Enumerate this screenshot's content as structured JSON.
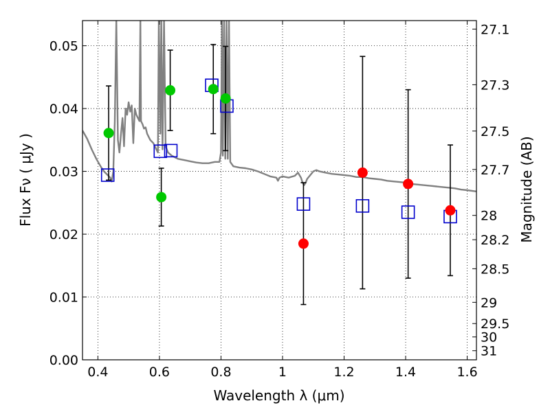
{
  "chart_data": {
    "type": "scatter",
    "xlabel": "Wavelength  λ (μm)",
    "ylabel": "Flux  Fν  ( μJy )",
    "y2label": "Magnitude (AB)",
    "xlim": [
      0.35,
      1.63
    ],
    "ylim": [
      0.0,
      0.054
    ],
    "grid": true,
    "x_ticks": [
      0.4,
      0.6,
      0.8,
      1.0,
      1.2,
      1.4,
      1.6
    ],
    "x_tick_labels": [
      "0.4",
      "0.6",
      "0.8",
      "1",
      "1.2",
      "1.4",
      "1.6"
    ],
    "y_ticks": [
      0.0,
      0.01,
      0.02,
      0.03,
      0.04,
      0.05
    ],
    "y_tick_labels": [
      "0.00",
      "0.01",
      "0.02",
      "0.03",
      "0.04",
      "0.05"
    ],
    "y2_ticks": [
      {
        "label": "27.1",
        "flux": 0.05265
      },
      {
        "label": "27.3",
        "flux": 0.04379
      },
      {
        "label": "27.5",
        "flux": 0.03642
      },
      {
        "label": "27.7",
        "flux": 0.0303
      },
      {
        "label": "28",
        "flux": 0.02299
      },
      {
        "label": "28.2",
        "flux": 0.01912
      },
      {
        "label": "28.5",
        "flux": 0.0145
      },
      {
        "label": "29",
        "flux": 0.00915
      },
      {
        "label": "29.5",
        "flux": 0.00577
      },
      {
        "label": "30",
        "flux": 0.00364
      },
      {
        "label": "31",
        "flux": 0.00145
      }
    ],
    "series": [
      {
        "marker": "circle",
        "color": "#00c800",
        "points": [
          {
            "x": 0.435,
            "y": 0.0361,
            "yerr": 0.0075
          },
          {
            "x": 0.606,
            "y": 0.0259,
            "yerr": 0.0046
          },
          {
            "x": 0.635,
            "y": 0.0429,
            "yerr": 0.0064
          },
          {
            "x": 0.775,
            "y": 0.0431,
            "yerr": 0.0071
          },
          {
            "x": 0.815,
            "y": 0.0416,
            "yerr": 0.0083
          }
        ]
      },
      {
        "marker": "circle",
        "color": "#ff0000",
        "points": [
          {
            "x": 1.068,
            "y": 0.0185,
            "yerr": 0.0097
          },
          {
            "x": 1.26,
            "y": 0.0298,
            "yerr": 0.0185
          },
          {
            "x": 1.408,
            "y": 0.028,
            "yerr": 0.015
          },
          {
            "x": 1.545,
            "y": 0.0238,
            "yerr": 0.0104
          }
        ]
      },
      {
        "marker": "open-square",
        "color": "#0000cc",
        "points": [
          {
            "x": 0.432,
            "y": 0.0294
          },
          {
            "x": 0.603,
            "y": 0.0332
          },
          {
            "x": 0.637,
            "y": 0.0333
          },
          {
            "x": 0.77,
            "y": 0.0437
          },
          {
            "x": 0.819,
            "y": 0.0404
          },
          {
            "x": 1.068,
            "y": 0.0248
          },
          {
            "x": 1.26,
            "y": 0.0245
          },
          {
            "x": 1.408,
            "y": 0.0235
          },
          {
            "x": 1.545,
            "y": 0.0228
          }
        ]
      },
      {
        "marker": "line",
        "color": "#808080",
        "points": [
          [
            0.35,
            0.0365
          ],
          [
            0.365,
            0.0352
          ],
          [
            0.38,
            0.0335
          ],
          [
            0.395,
            0.032
          ],
          [
            0.41,
            0.0307
          ],
          [
            0.42,
            0.03
          ],
          [
            0.43,
            0.0295
          ],
          [
            0.44,
            0.029
          ],
          [
            0.445,
            0.0284
          ],
          [
            0.45,
            0.03
          ],
          [
            0.455,
            0.038
          ],
          [
            0.46,
            0.054
          ],
          [
            0.465,
            0.035
          ],
          [
            0.47,
            0.033
          ],
          [
            0.475,
            0.036
          ],
          [
            0.48,
            0.0385
          ],
          [
            0.485,
            0.034
          ],
          [
            0.49,
            0.04
          ],
          [
            0.495,
            0.039
          ],
          [
            0.5,
            0.041
          ],
          [
            0.505,
            0.0395
          ],
          [
            0.51,
            0.0405
          ],
          [
            0.515,
            0.0345
          ],
          [
            0.52,
            0.04
          ],
          [
            0.525,
            0.039
          ],
          [
            0.53,
            0.0385
          ],
          [
            0.535,
            0.038
          ],
          [
            0.538,
            0.054
          ],
          [
            0.54,
            0.038
          ],
          [
            0.545,
            0.0375
          ],
          [
            0.55,
            0.0368
          ],
          [
            0.555,
            0.037
          ],
          [
            0.56,
            0.036
          ],
          [
            0.57,
            0.035
          ],
          [
            0.58,
            0.0345
          ],
          [
            0.59,
            0.0335
          ],
          [
            0.595,
            0.033
          ],
          [
            0.598,
            0.054
          ],
          [
            0.603,
            0.036
          ],
          [
            0.606,
            0.054
          ],
          [
            0.61,
            0.0335
          ],
          [
            0.615,
            0.054
          ],
          [
            0.62,
            0.034
          ],
          [
            0.628,
            0.033
          ],
          [
            0.64,
            0.0325
          ],
          [
            0.66,
            0.032
          ],
          [
            0.68,
            0.0318
          ],
          [
            0.7,
            0.0316
          ],
          [
            0.72,
            0.0314
          ],
          [
            0.74,
            0.0313
          ],
          [
            0.76,
            0.0313
          ],
          [
            0.78,
            0.0315
          ],
          [
            0.795,
            0.0315
          ],
          [
            0.8,
            0.033
          ],
          [
            0.803,
            0.054
          ],
          [
            0.806,
            0.0325
          ],
          [
            0.81,
            0.054
          ],
          [
            0.814,
            0.032
          ],
          [
            0.818,
            0.054
          ],
          [
            0.822,
            0.032
          ],
          [
            0.826,
            0.054
          ],
          [
            0.83,
            0.0315
          ],
          [
            0.84,
            0.0308
          ],
          [
            0.86,
            0.0306
          ],
          [
            0.88,
            0.0305
          ],
          [
            0.9,
            0.0303
          ],
          [
            0.92,
            0.03
          ],
          [
            0.94,
            0.0296
          ],
          [
            0.96,
            0.0292
          ],
          [
            0.98,
            0.029
          ],
          [
            0.985,
            0.0285
          ],
          [
            0.99,
            0.029
          ],
          [
            1.0,
            0.0292
          ],
          [
            1.02,
            0.029
          ],
          [
            1.04,
            0.0293
          ],
          [
            1.05,
            0.0298
          ],
          [
            1.06,
            0.029
          ],
          [
            1.065,
            0.0282
          ],
          [
            1.07,
            0.0278
          ],
          [
            1.075,
            0.0282
          ],
          [
            1.08,
            0.0288
          ],
          [
            1.09,
            0.0294
          ],
          [
            1.1,
            0.03
          ],
          [
            1.11,
            0.0302
          ],
          [
            1.12,
            0.03
          ],
          [
            1.14,
            0.0298
          ],
          [
            1.16,
            0.0296
          ],
          [
            1.18,
            0.0295
          ],
          [
            1.2,
            0.0294
          ],
          [
            1.22,
            0.0293
          ],
          [
            1.24,
            0.0291
          ],
          [
            1.26,
            0.0291
          ],
          [
            1.28,
            0.0289
          ],
          [
            1.3,
            0.0288
          ],
          [
            1.32,
            0.0287
          ],
          [
            1.34,
            0.0285
          ],
          [
            1.36,
            0.0284
          ],
          [
            1.38,
            0.0283
          ],
          [
            1.4,
            0.0282
          ],
          [
            1.42,
            0.028
          ],
          [
            1.44,
            0.0279
          ],
          [
            1.46,
            0.0278
          ],
          [
            1.48,
            0.0277
          ],
          [
            1.5,
            0.0276
          ],
          [
            1.52,
            0.0275
          ],
          [
            1.54,
            0.0274
          ],
          [
            1.56,
            0.0273
          ],
          [
            1.58,
            0.0271
          ],
          [
            1.6,
            0.027
          ],
          [
            1.63,
            0.0268
          ]
        ]
      }
    ]
  }
}
